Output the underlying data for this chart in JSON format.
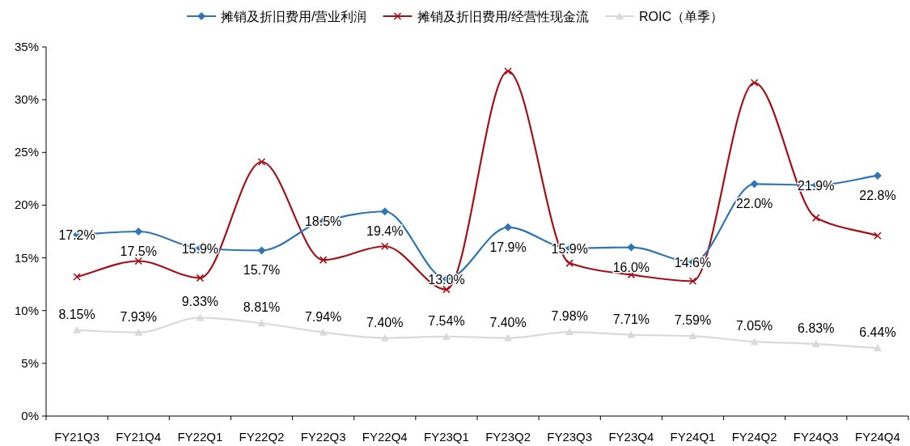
{
  "chart_data": {
    "type": "line",
    "categories": [
      "FY21Q3",
      "FY21Q4",
      "FY22Q1",
      "FY22Q2",
      "FY22Q3",
      "FY22Q4",
      "FY23Q1",
      "FY23Q2",
      "FY23Q3",
      "FY23Q4",
      "FY24Q1",
      "FY24Q2",
      "FY24Q3",
      "FY24Q4"
    ],
    "series": [
      {
        "name": "摊销及折旧费用/营业利润",
        "color": "#2e75b6",
        "marker": "diamond",
        "values": [
          17.2,
          17.5,
          15.9,
          15.7,
          18.5,
          19.4,
          13.0,
          17.9,
          15.9,
          16.0,
          14.6,
          22.0,
          21.9,
          22.8
        ],
        "value_labels": [
          "17.2%",
          "17.5%",
          "15.9%",
          "15.7%",
          "18.5%",
          "19.4%",
          "13.0%",
          "17.9%",
          "15.9%",
          "16.0%",
          "14.6%",
          "22.0%",
          "21.9%",
          "22.8%"
        ]
      },
      {
        "name": "摊销及折旧费用/经营性现金流",
        "color": "#a50f15",
        "marker": "cross",
        "values": [
          13.2,
          14.7,
          13.1,
          24.1,
          14.8,
          16.1,
          12.0,
          32.7,
          14.5,
          13.4,
          12.8,
          31.6,
          18.8,
          17.1
        ]
      },
      {
        "name": "ROIC（单季）",
        "color": "#d9d9d9",
        "marker": "triangle",
        "values": [
          8.15,
          7.93,
          9.33,
          8.81,
          7.94,
          7.4,
          7.54,
          7.4,
          7.98,
          7.71,
          7.59,
          7.05,
          6.83,
          6.44
        ],
        "value_labels": [
          "8.15%",
          "7.93%",
          "9.33%",
          "8.81%",
          "7.94%",
          "7.40%",
          "7.54%",
          "7.40%",
          "7.98%",
          "7.71%",
          "7.59%",
          "7.05%",
          "6.83%",
          "6.44%"
        ]
      }
    ],
    "ylim": [
      0,
      35
    ],
    "yticks": [
      {
        "value": 0,
        "label": "0%"
      },
      {
        "value": 5,
        "label": "5%"
      },
      {
        "value": 10,
        "label": "10%"
      },
      {
        "value": 15,
        "label": "15%"
      },
      {
        "value": 20,
        "label": "20%"
      },
      {
        "value": 25,
        "label": "25%"
      },
      {
        "value": 30,
        "label": "30%"
      },
      {
        "value": 35,
        "label": "35%"
      }
    ],
    "legend": "top",
    "grid": false
  }
}
